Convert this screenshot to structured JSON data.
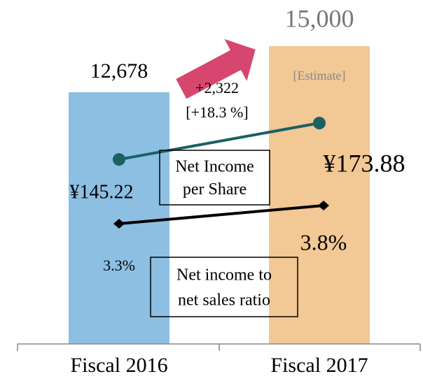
{
  "chart_data": {
    "type": "bar",
    "categories": [
      "Fiscal 2016",
      "Fiscal 2017"
    ],
    "values": [
      12678,
      15000
    ],
    "value_labels": [
      "12,678",
      "15,000"
    ],
    "colors": [
      "#8dbfe3",
      "#f2c894"
    ],
    "annotations": [
      "[Estimate]",
      "+2,322",
      "[+18.3 %]"
    ],
    "lines": [
      {
        "name": [
          "Net Income",
          "per Share"
        ],
        "color": "#1a6165",
        "marker": "circle",
        "values": [
          145.22,
          173.88
        ],
        "value_labels": [
          "¥145.22",
          "¥173.88"
        ]
      },
      {
        "name": [
          "Net income to",
          "net sales ratio"
        ],
        "color": "#000000",
        "marker": "diamond",
        "values": [
          3.3,
          3.8
        ],
        "value_labels": [
          "3.3%",
          "3.8%"
        ]
      }
    ]
  }
}
